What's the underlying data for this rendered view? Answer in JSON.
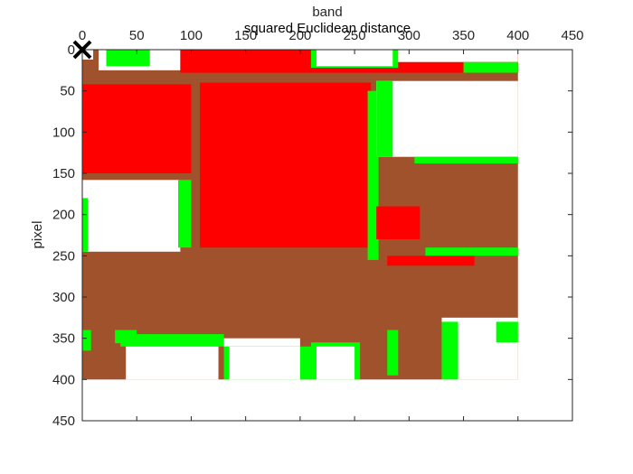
{
  "chart_data": {
    "type": "heatmap",
    "title": "squared Euclidean distance",
    "xlabel": "band",
    "ylabel": "pixel",
    "x_axis_location": "top",
    "y_axis_direction": "reverse",
    "xlim": [
      0,
      450
    ],
    "ylim": [
      0,
      450
    ],
    "xticks": [
      0,
      50,
      100,
      150,
      200,
      250,
      300,
      350,
      400,
      450
    ],
    "yticks": [
      0,
      50,
      100,
      150,
      200,
      250,
      300,
      350,
      400,
      450
    ],
    "grid": false,
    "image_extent": {
      "x": [
        0,
        400
      ],
      "y": [
        0,
        400
      ]
    },
    "class_colors": {
      "background": "#a0522d",
      "class_red": "#ff0000",
      "class_green": "#00ff00",
      "class_white": "#ffffff"
    },
    "regions": [
      {
        "class": "class_white",
        "x": [
          0,
          10
        ],
        "y": [
          0,
          12
        ]
      },
      {
        "class": "class_white",
        "x": [
          15,
          90
        ],
        "y": [
          0,
          25
        ]
      },
      {
        "class": "class_green",
        "x": [
          22,
          62
        ],
        "y": [
          0,
          20
        ]
      },
      {
        "class": "class_red",
        "x": [
          90,
          400
        ],
        "y": [
          0,
          28
        ]
      },
      {
        "class": "class_green",
        "x": [
          210,
          290
        ],
        "y": [
          0,
          22
        ]
      },
      {
        "class": "class_white",
        "x": [
          215,
          285
        ],
        "y": [
          0,
          20
        ]
      },
      {
        "class": "class_white",
        "x": [
          290,
          400
        ],
        "y": [
          0,
          15
        ]
      },
      {
        "class": "class_green",
        "x": [
          350,
          400
        ],
        "y": [
          15,
          28
        ]
      },
      {
        "class": "class_red",
        "x": [
          0,
          100
        ],
        "y": [
          42,
          150
        ]
      },
      {
        "class": "class_red",
        "x": [
          108,
          265
        ],
        "y": [
          40,
          240
        ]
      },
      {
        "class": "class_green",
        "x": [
          262,
          272
        ],
        "y": [
          50,
          255
        ]
      },
      {
        "class": "class_white",
        "x": [
          270,
          400
        ],
        "y": [
          38,
          130
        ]
      },
      {
        "class": "class_green",
        "x": [
          270,
          285
        ],
        "y": [
          38,
          130
        ]
      },
      {
        "class": "class_green",
        "x": [
          305,
          400
        ],
        "y": [
          130,
          138
        ]
      },
      {
        "class": "class_red",
        "x": [
          270,
          310
        ],
        "y": [
          190,
          230
        ]
      },
      {
        "class": "class_white",
        "x": [
          0,
          90
        ],
        "y": [
          158,
          245
        ]
      },
      {
        "class": "class_green",
        "x": [
          0,
          5
        ],
        "y": [
          180,
          245
        ]
      },
      {
        "class": "class_green",
        "x": [
          88,
          100
        ],
        "y": [
          158,
          240
        ]
      },
      {
        "class": "class_green",
        "x": [
          315,
          400
        ],
        "y": [
          240,
          250
        ]
      },
      {
        "class": "class_red",
        "x": [
          280,
          360
        ],
        "y": [
          250,
          262
        ]
      },
      {
        "class": "class_green",
        "x": [
          0,
          8
        ],
        "y": [
          340,
          365
        ]
      },
      {
        "class": "class_green",
        "x": [
          30,
          50
        ],
        "y": [
          340,
          356
        ]
      },
      {
        "class": "class_green",
        "x": [
          35,
          130
        ],
        "y": [
          345,
          360
        ]
      },
      {
        "class": "class_white",
        "x": [
          40,
          125
        ],
        "y": [
          360,
          400
        ]
      },
      {
        "class": "class_white",
        "x": [
          130,
          200
        ],
        "y": [
          350,
          360
        ]
      },
      {
        "class": "class_green",
        "x": [
          130,
          210
        ],
        "y": [
          360,
          400
        ]
      },
      {
        "class": "class_white",
        "x": [
          135,
          200
        ],
        "y": [
          360,
          400
        ]
      },
      {
        "class": "class_green",
        "x": [
          210,
          255
        ],
        "y": [
          355,
          405
        ]
      },
      {
        "class": "class_white",
        "x": [
          215,
          250
        ],
        "y": [
          360,
          400
        ]
      },
      {
        "class": "class_white",
        "x": [
          280,
          320
        ],
        "y": [
          400,
          405
        ]
      },
      {
        "class": "class_green",
        "x": [
          280,
          290
        ],
        "y": [
          340,
          395
        ]
      },
      {
        "class": "class_white",
        "x": [
          330,
          400
        ],
        "y": [
          325,
          400
        ]
      },
      {
        "class": "class_green",
        "x": [
          330,
          345
        ],
        "y": [
          330,
          400
        ]
      },
      {
        "class": "class_green",
        "x": [
          380,
          400
        ],
        "y": [
          330,
          355
        ]
      }
    ],
    "annotations": [
      {
        "type": "marker",
        "symbol": "x",
        "color": "#000000",
        "x": 0,
        "y": 0
      }
    ]
  }
}
